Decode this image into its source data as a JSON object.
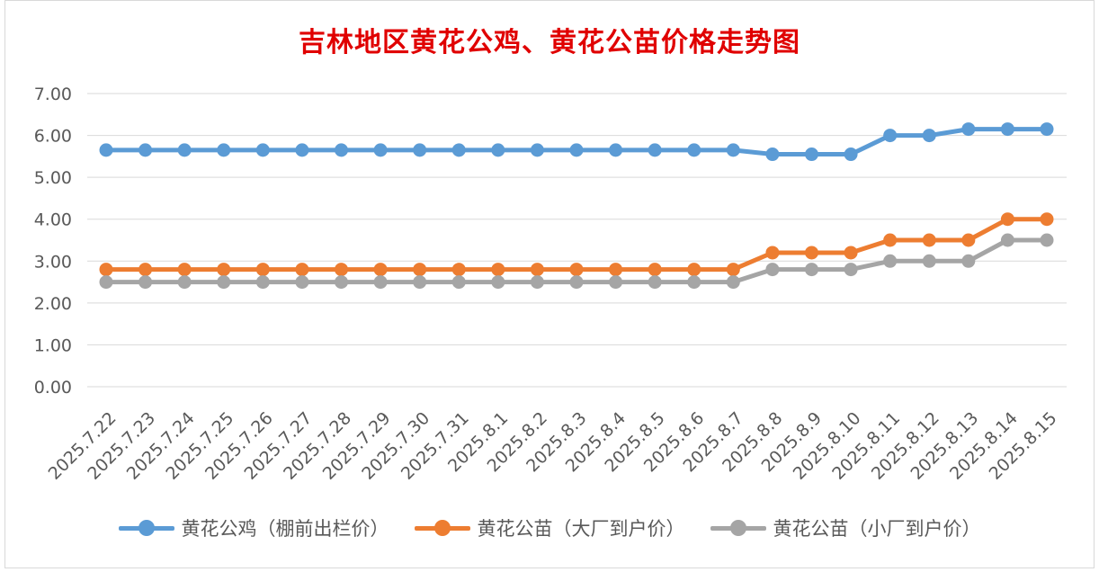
{
  "chart_data": {
    "type": "line",
    "title": "吉林地区黄花公鸡、黄花公苗价格走势图",
    "categories": [
      "2025.7.22",
      "2025.7.23",
      "2025.7.24",
      "2025.7.25",
      "2025.7.26",
      "2025.7.27",
      "2025.7.28",
      "2025.7.29",
      "2025.7.30",
      "2025.7.31",
      "2025.8.1",
      "2025.8.2",
      "2025.8.3",
      "2025.8.4",
      "2025.8.5",
      "2025.8.6",
      "2025.8.7",
      "2025.8.8",
      "2025.8.9",
      "2025.8.10",
      "2025.8.11",
      "2025.8.12",
      "2025.8.13",
      "2025.8.14",
      "2025.8.15"
    ],
    "yticks": [
      "0.00",
      "1.00",
      "2.00",
      "3.00",
      "4.00",
      "5.00",
      "6.00",
      "7.00"
    ],
    "ylim": [
      0,
      7
    ],
    "grid": true,
    "legend_position": "bottom",
    "series": [
      {
        "name": "黄花公鸡（棚前出栏价）",
        "color": "#5b9bd5",
        "values": [
          5.65,
          5.65,
          5.65,
          5.65,
          5.65,
          5.65,
          5.65,
          5.65,
          5.65,
          5.65,
          5.65,
          5.65,
          5.65,
          5.65,
          5.65,
          5.65,
          5.65,
          5.55,
          5.55,
          5.55,
          6.0,
          6.0,
          6.15,
          6.15,
          6.15
        ]
      },
      {
        "name": "黄花公苗（大厂到户价）",
        "color": "#ed7d31",
        "values": [
          2.8,
          2.8,
          2.8,
          2.8,
          2.8,
          2.8,
          2.8,
          2.8,
          2.8,
          2.8,
          2.8,
          2.8,
          2.8,
          2.8,
          2.8,
          2.8,
          2.8,
          3.2,
          3.2,
          3.2,
          3.5,
          3.5,
          3.5,
          4.0,
          4.0
        ]
      },
      {
        "name": "黄花公苗（小厂到户价）",
        "color": "#a5a5a5",
        "values": [
          2.5,
          2.5,
          2.5,
          2.5,
          2.5,
          2.5,
          2.5,
          2.5,
          2.5,
          2.5,
          2.5,
          2.5,
          2.5,
          2.5,
          2.5,
          2.5,
          2.5,
          2.8,
          2.8,
          2.8,
          3.0,
          3.0,
          3.0,
          3.5,
          3.5
        ]
      }
    ]
  }
}
